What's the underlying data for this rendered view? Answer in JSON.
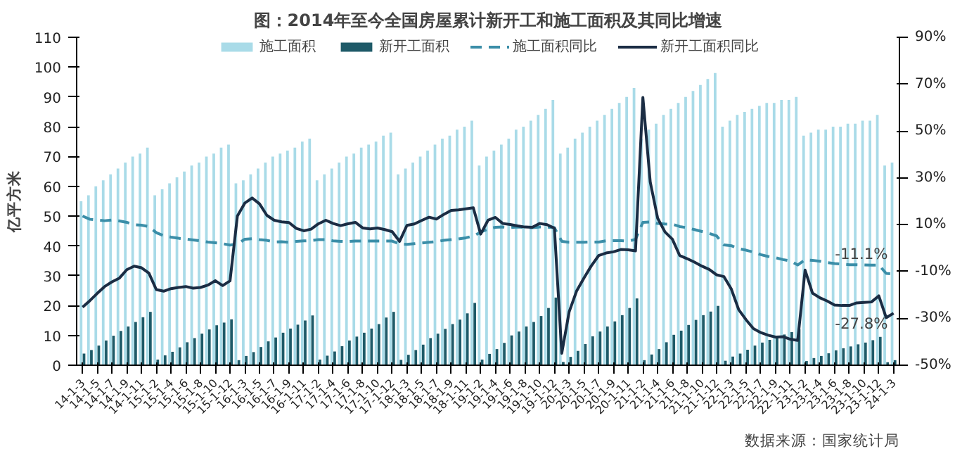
{
  "chart_data": {
    "type": "bar",
    "title": "图：2014年至今全国房屋累计新开工和施工面积及其同比增速",
    "ylabel": "亿平方米",
    "categories": [
      "14-1-3",
      null,
      "14-1-5",
      null,
      "14-1-7",
      null,
      "14-1-9",
      null,
      "14-1-11",
      null,
      "15-1-2",
      null,
      "15-1-4",
      null,
      "15-1-6",
      null,
      "15-1-8",
      null,
      "15-1-10",
      null,
      "15-1-12",
      null,
      "16-1-3",
      null,
      "16-1-5",
      null,
      "16-1-7",
      null,
      "16-1-9",
      null,
      "16-1-11",
      null,
      "17-1-2",
      null,
      "17-1-4",
      null,
      "17-1-6",
      null,
      "17-1-8",
      null,
      "17-1-10",
      null,
      "17-1-12",
      null,
      "18-1-3",
      null,
      "18-1-5",
      null,
      "18-1-7",
      null,
      "18-1-9",
      null,
      "18-1-11",
      null,
      "19-1-2",
      null,
      "19-1-4",
      null,
      "19-1-6",
      null,
      "19-1-8",
      null,
      "19-1-10",
      null,
      "19-1-12",
      null,
      "20-1-3",
      null,
      "20-1-5",
      null,
      "20-1-7",
      null,
      "20-1-9",
      null,
      "20-1-11",
      null,
      "21-1-2",
      null,
      "21-1-4",
      null,
      "21-1-6",
      null,
      "21-1-8",
      null,
      "21-1-10",
      null,
      "21-1-12",
      null,
      "22-1-3",
      null,
      "22-1-5",
      null,
      "22-1-7",
      null,
      "22-1-9",
      null,
      "22-1-11",
      null,
      "23-1-2",
      null,
      "23-1-4",
      null,
      "23-1-6",
      null,
      "23-1-8",
      null,
      "23-1-10",
      null,
      "23-1-12",
      null,
      "24-1-3"
    ],
    "ylim": [
      0,
      110
    ],
    "yticks": [
      0,
      10,
      20,
      30,
      40,
      50,
      60,
      70,
      80,
      90,
      100,
      110
    ],
    "y2lim": [
      -50,
      90
    ],
    "y2ticks": [
      {
        "value": -50,
        "label": "-50%"
      },
      {
        "value": -30,
        "label": "-30%"
      },
      {
        "value": -10,
        "label": "-10%"
      },
      {
        "value": 10,
        "label": "10%"
      },
      {
        "value": 30,
        "label": "30%"
      },
      {
        "value": 50,
        "label": "50%"
      },
      {
        "value": 70,
        "label": "70%"
      },
      {
        "value": 90,
        "label": "90%"
      }
    ],
    "legend": "top",
    "series": [
      {
        "name": "施工面积",
        "color": "#a9dbe8",
        "values": [
          55,
          57,
          60,
          62,
          64,
          66,
          68,
          70,
          71,
          73,
          57,
          59,
          61,
          63,
          65,
          67,
          68,
          70,
          71,
          73,
          74,
          61,
          62,
          64,
          66,
          68,
          70,
          71,
          72,
          73,
          75,
          76,
          62,
          64,
          66,
          68,
          70,
          71,
          73,
          74,
          75,
          77,
          78,
          64,
          66,
          68,
          70,
          72,
          74,
          76,
          77,
          79,
          80,
          82,
          67,
          70,
          72,
          74,
          76,
          79,
          80,
          82,
          84,
          86,
          89,
          71,
          73,
          76,
          78,
          80,
          82,
          84,
          86,
          88,
          90,
          93,
          76,
          79,
          81,
          84,
          86,
          88,
          90,
          92,
          94,
          96,
          98,
          80,
          82,
          84,
          85,
          86,
          87,
          88,
          88,
          89,
          89,
          90,
          77,
          78,
          79,
          79,
          80,
          80,
          81,
          81,
          82,
          82,
          84,
          67,
          68
        ]
      },
      {
        "name": "新开工面积",
        "color": "#1e5a68",
        "values": [
          3.9,
          5.1,
          6.6,
          8.3,
          9.9,
          11.5,
          13.0,
          14.5,
          16.1,
          17.9,
          1.9,
          3.3,
          4.5,
          6.0,
          7.7,
          9.1,
          10.6,
          12.0,
          13.4,
          14.3,
          15.4,
          1.7,
          3.1,
          4.4,
          6.1,
          8.0,
          9.3,
          10.9,
          12.3,
          13.6,
          15.0,
          16.7,
          1.9,
          3.2,
          4.6,
          6.4,
          8.3,
          9.6,
          10.9,
          12.3,
          13.8,
          16.0,
          17.9,
          1.8,
          3.5,
          5.1,
          6.9,
          9.1,
          10.6,
          12.2,
          13.8,
          15.3,
          17.4,
          20.9,
          1.9,
          3.8,
          5.4,
          7.5,
          10.0,
          11.3,
          13.0,
          14.5,
          16.5,
          19.2,
          22.7,
          1.1,
          2.8,
          4.8,
          7.1,
          9.7,
          11.3,
          13.0,
          14.7,
          16.8,
          19.2,
          22.4,
          1.7,
          3.6,
          5.4,
          7.7,
          10.2,
          11.6,
          13.5,
          15.2,
          16.8,
          18.0,
          19.9,
          1.5,
          2.9,
          3.9,
          5.2,
          6.6,
          7.6,
          8.5,
          9.5,
          10.3,
          11.1,
          12.1,
          1.4,
          2.4,
          3.1,
          4.0,
          5.0,
          5.7,
          6.3,
          7.0,
          7.6,
          8.4,
          9.5,
          1.0,
          1.7
        ]
      },
      {
        "name": "施工面积同比",
        "type": "line",
        "axis": "y2",
        "line_style": "dashed",
        "color": "#3b8ea8",
        "values": [
          13.7,
          12.3,
          12.0,
          11.7,
          12.0,
          11.6,
          11.0,
          10.0,
          9.8,
          9.2,
          6.6,
          5.3,
          4.7,
          4.2,
          3.9,
          3.5,
          3.1,
          2.6,
          2.3,
          1.9,
          1.3,
          1.7,
          3.8,
          4.0,
          3.6,
          3.3,
          2.6,
          2.7,
          2.5,
          2.9,
          3.1,
          3.2,
          3.6,
          3.6,
          3.1,
          2.9,
          2.8,
          3.0,
          3.0,
          3.0,
          3.0,
          3.0,
          3.0,
          1.8,
          1.6,
          1.9,
          2.2,
          2.5,
          2.8,
          3.3,
          3.6,
          3.9,
          4.4,
          5.2,
          6.8,
          8.2,
          8.9,
          9.0,
          8.8,
          9.0,
          8.8,
          8.7,
          9.0,
          9.0,
          8.7,
          2.9,
          2.5,
          2.5,
          2.5,
          2.6,
          2.6,
          3.1,
          3.2,
          3.2,
          3.0,
          3.7,
          11.0,
          11.2,
          10.5,
          10.3,
          10.2,
          9.2,
          8.7,
          7.9,
          7.1,
          6.3,
          5.2,
          1.4,
          1.0,
          -0.2,
          -0.9,
          -1.7,
          -2.8,
          -3.6,
          -4.1,
          -4.9,
          -5.5,
          -7.2,
          -5.0,
          -5.2,
          -5.6,
          -6.2,
          -6.6,
          -6.8,
          -7.1,
          -7.1,
          -7.2,
          -7.3,
          -7.2,
          -10.8,
          -11.1
        ]
      },
      {
        "name": "新开工面积同比",
        "type": "line",
        "axis": "y2",
        "line_style": "solid",
        "color": "#1b2d44",
        "values": [
          -25.2,
          -22.4,
          -19.3,
          -16.4,
          -14.4,
          -12.8,
          -9.2,
          -7.7,
          -8.4,
          -10.7,
          -17.7,
          -18.4,
          -17.3,
          -16.8,
          -16.4,
          -17.1,
          -16.8,
          -15.8,
          -13.9,
          -16.0,
          -14.0,
          13.7,
          19.2,
          21.4,
          18.9,
          14.0,
          11.9,
          11.2,
          10.9,
          8.4,
          7.4,
          8.1,
          10.4,
          11.9,
          10.5,
          9.6,
          10.4,
          11.0,
          8.6,
          8.2,
          8.6,
          7.9,
          7.0,
          2.9,
          9.7,
          10.3,
          11.8,
          13.2,
          12.4,
          14.4,
          16.1,
          16.3,
          16.8,
          17.2,
          6.0,
          11.9,
          13.1,
          10.5,
          10.1,
          9.5,
          9.0,
          8.9,
          10.5,
          10.0,
          8.5,
          -44.9,
          -27.2,
          -18.4,
          -12.8,
          -7.6,
          -3.2,
          -2.1,
          -1.6,
          -0.6,
          -0.7,
          -1.2,
          64.3,
          28.2,
          12.8,
          6.9,
          3.8,
          -3.2,
          -4.5,
          -6.0,
          -7.7,
          -9.1,
          -11.4,
          -12.2,
          -17.5,
          -26.3,
          -30.6,
          -34.4,
          -36.1,
          -37.2,
          -38.0,
          -37.8,
          -38.9,
          -39.4,
          -9.4,
          -19.2,
          -21.2,
          -22.6,
          -24.3,
          -24.5,
          -24.5,
          -23.4,
          -23.2,
          -23.0,
          -20.4,
          -29.7,
          -27.8
        ]
      }
    ],
    "annotations": [
      "-11.1%",
      "-27.8%",
      "数据来源：国家统计局"
    ]
  }
}
